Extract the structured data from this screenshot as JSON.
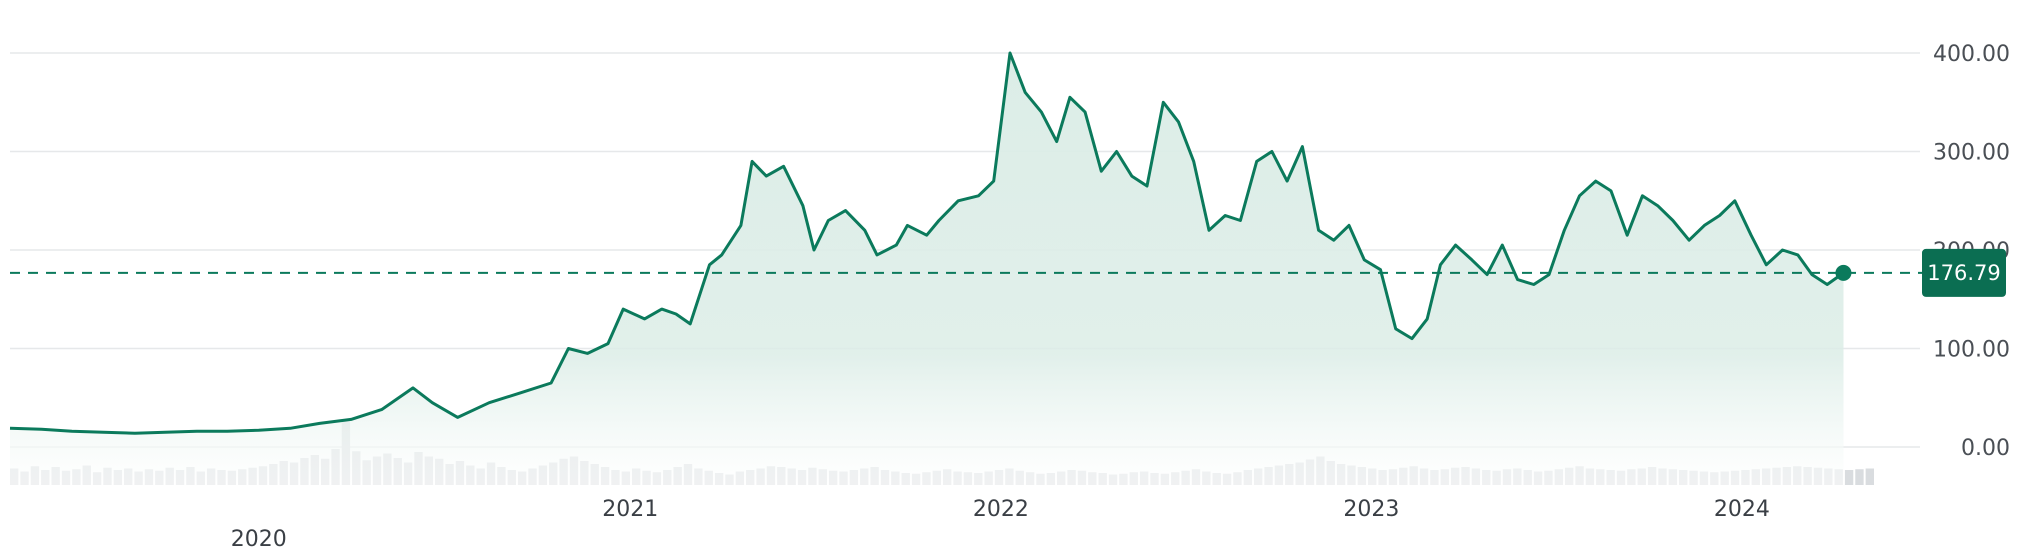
{
  "chart_data": {
    "type": "line",
    "title": "",
    "xlabel": "",
    "ylabel": "",
    "ylim": [
      -35,
      420
    ],
    "xlim": [
      "2019-05-01",
      "2024-05-16"
    ],
    "grid": true,
    "legend": "none",
    "y_ticks": [
      {
        "value": 0,
        "label": "0.00"
      },
      {
        "value": 100,
        "label": "100.00"
      },
      {
        "value": 200,
        "label": "200.00"
      },
      {
        "value": 300,
        "label": "300.00"
      },
      {
        "value": 400,
        "label": "400.00"
      }
    ],
    "x_ticks": [
      {
        "date": "2020-01-01",
        "label": "2020"
      },
      {
        "date": "2021-01-01",
        "label": "2021"
      },
      {
        "date": "2022-01-01",
        "label": "2022"
      },
      {
        "date": "2023-01-01",
        "label": "2023"
      },
      {
        "date": "2024-01-01",
        "label": "2024"
      }
    ],
    "last_value": 176.79,
    "last_value_label": "176.79",
    "colors": {
      "line": "#0b7a5c",
      "area_top": "#dcede7",
      "area_bottom": "#ffffff",
      "volume": "#d9dcdf",
      "grid": "#e6e8ea",
      "label_bg": "#0b6e52"
    },
    "series": [
      {
        "type": "line",
        "points": [
          [
            "2019-05-01",
            19
          ],
          [
            "2019-06-01",
            18
          ],
          [
            "2019-07-01",
            16
          ],
          [
            "2019-08-01",
            15
          ],
          [
            "2019-09-01",
            14
          ],
          [
            "2019-10-01",
            15
          ],
          [
            "2019-11-01",
            16
          ],
          [
            "2019-12-01",
            16
          ],
          [
            "2020-01-01",
            17
          ],
          [
            "2020-02-01",
            19
          ],
          [
            "2020-03-01",
            24
          ],
          [
            "2020-04-01",
            28
          ],
          [
            "2020-05-01",
            38
          ],
          [
            "2020-06-01",
            60
          ],
          [
            "2020-06-20",
            45
          ],
          [
            "2020-07-15",
            30
          ],
          [
            "2020-08-15",
            45
          ],
          [
            "2020-09-15",
            55
          ],
          [
            "2020-10-15",
            65
          ],
          [
            "2020-11-01",
            100
          ],
          [
            "2020-11-20",
            95
          ],
          [
            "2020-12-10",
            105
          ],
          [
            "2020-12-25",
            140
          ],
          [
            "2021-01-15",
            130
          ],
          [
            "2021-02-01",
            140
          ],
          [
            "2021-02-15",
            135
          ],
          [
            "2021-03-01",
            125
          ],
          [
            "2021-03-20",
            185
          ],
          [
            "2021-04-01",
            195
          ],
          [
            "2021-04-20",
            225
          ],
          [
            "2021-05-01",
            290
          ],
          [
            "2021-05-15",
            275
          ],
          [
            "2021-06-01",
            285
          ],
          [
            "2021-06-20",
            245
          ],
          [
            "2021-07-01",
            200
          ],
          [
            "2021-07-15",
            230
          ],
          [
            "2021-08-01",
            240
          ],
          [
            "2021-08-20",
            220
          ],
          [
            "2021-09-01",
            195
          ],
          [
            "2021-09-20",
            205
          ],
          [
            "2021-10-01",
            225
          ],
          [
            "2021-10-20",
            215
          ],
          [
            "2021-11-01",
            230
          ],
          [
            "2021-11-20",
            250
          ],
          [
            "2021-12-10",
            255
          ],
          [
            "2021-12-25",
            270
          ],
          [
            "2022-01-10",
            400
          ],
          [
            "2022-01-25",
            360
          ],
          [
            "2022-02-10",
            340
          ],
          [
            "2022-02-25",
            310
          ],
          [
            "2022-03-10",
            355
          ],
          [
            "2022-03-25",
            340
          ],
          [
            "2022-04-10",
            280
          ],
          [
            "2022-04-25",
            300
          ],
          [
            "2022-05-10",
            275
          ],
          [
            "2022-05-25",
            265
          ],
          [
            "2022-06-10",
            350
          ],
          [
            "2022-06-25",
            330
          ],
          [
            "2022-07-10",
            290
          ],
          [
            "2022-07-25",
            220
          ],
          [
            "2022-08-10",
            235
          ],
          [
            "2022-08-25",
            230
          ],
          [
            "2022-09-10",
            290
          ],
          [
            "2022-09-25",
            300
          ],
          [
            "2022-10-10",
            270
          ],
          [
            "2022-10-25",
            305
          ],
          [
            "2022-11-10",
            220
          ],
          [
            "2022-11-25",
            210
          ],
          [
            "2022-12-10",
            225
          ],
          [
            "2022-12-25",
            190
          ],
          [
            "2023-01-10",
            180
          ],
          [
            "2023-01-25",
            120
          ],
          [
            "2023-02-10",
            110
          ],
          [
            "2023-02-25",
            130
          ],
          [
            "2023-03-10",
            185
          ],
          [
            "2023-03-25",
            205
          ],
          [
            "2023-04-10",
            190
          ],
          [
            "2023-04-25",
            175
          ],
          [
            "2023-05-10",
            205
          ],
          [
            "2023-05-25",
            170
          ],
          [
            "2023-06-10",
            165
          ],
          [
            "2023-06-25",
            175
          ],
          [
            "2023-07-10",
            220
          ],
          [
            "2023-07-25",
            255
          ],
          [
            "2023-08-10",
            270
          ],
          [
            "2023-08-25",
            260
          ],
          [
            "2023-09-10",
            215
          ],
          [
            "2023-09-25",
            255
          ],
          [
            "2023-10-10",
            245
          ],
          [
            "2023-10-25",
            230
          ],
          [
            "2023-11-10",
            210
          ],
          [
            "2023-11-25",
            225
          ],
          [
            "2023-12-10",
            235
          ],
          [
            "2023-12-25",
            250
          ],
          [
            "2024-01-10",
            215
          ],
          [
            "2024-01-25",
            185
          ],
          [
            "2024-02-10",
            200
          ],
          [
            "2024-02-25",
            195
          ],
          [
            "2024-03-10",
            175
          ],
          [
            "2024-03-25",
            165
          ],
          [
            "2024-04-10",
            176.79
          ]
        ]
      },
      {
        "type": "volume_bar",
        "values": [
          22,
          18,
          25,
          20,
          24,
          19,
          21,
          26,
          17,
          23,
          20,
          22,
          18,
          21,
          19,
          23,
          20,
          24,
          18,
          22,
          20,
          19,
          21,
          23,
          25,
          28,
          32,
          30,
          36,
          40,
          35,
          48,
          85,
          45,
          33,
          38,
          42,
          36,
          30,
          44,
          38,
          35,
          28,
          32,
          26,
          22,
          30,
          24,
          20,
          18,
          22,
          26,
          30,
          35,
          38,
          32,
          28,
          24,
          20,
          18,
          22,
          19,
          17,
          20,
          24,
          28,
          22,
          19,
          16,
          14,
          18,
          20,
          22,
          25,
          24,
          22,
          20,
          23,
          21,
          19,
          18,
          20,
          22,
          24,
          20,
          18,
          16,
          15,
          17,
          19,
          21,
          18,
          17,
          16,
          18,
          20,
          22,
          19,
          17,
          15,
          16,
          18,
          20,
          19,
          17,
          16,
          14,
          15,
          17,
          18,
          16,
          15,
          17,
          19,
          21,
          18,
          16,
          15,
          17,
          20,
          22,
          24,
          26,
          28,
          30,
          34,
          38,
          32,
          28,
          26,
          24,
          22,
          20,
          21,
          23,
          25,
          22,
          20,
          21,
          23,
          24,
          22,
          20,
          19,
          21,
          22,
          20,
          18,
          19,
          21,
          23,
          25,
          22,
          21,
          20,
          19,
          21,
          22,
          24,
          22,
          21,
          20,
          19,
          18,
          17,
          18,
          19,
          20,
          21,
          22,
          23,
          24,
          25,
          24,
          23,
          22,
          21,
          20,
          21,
          22
        ]
      }
    ]
  }
}
